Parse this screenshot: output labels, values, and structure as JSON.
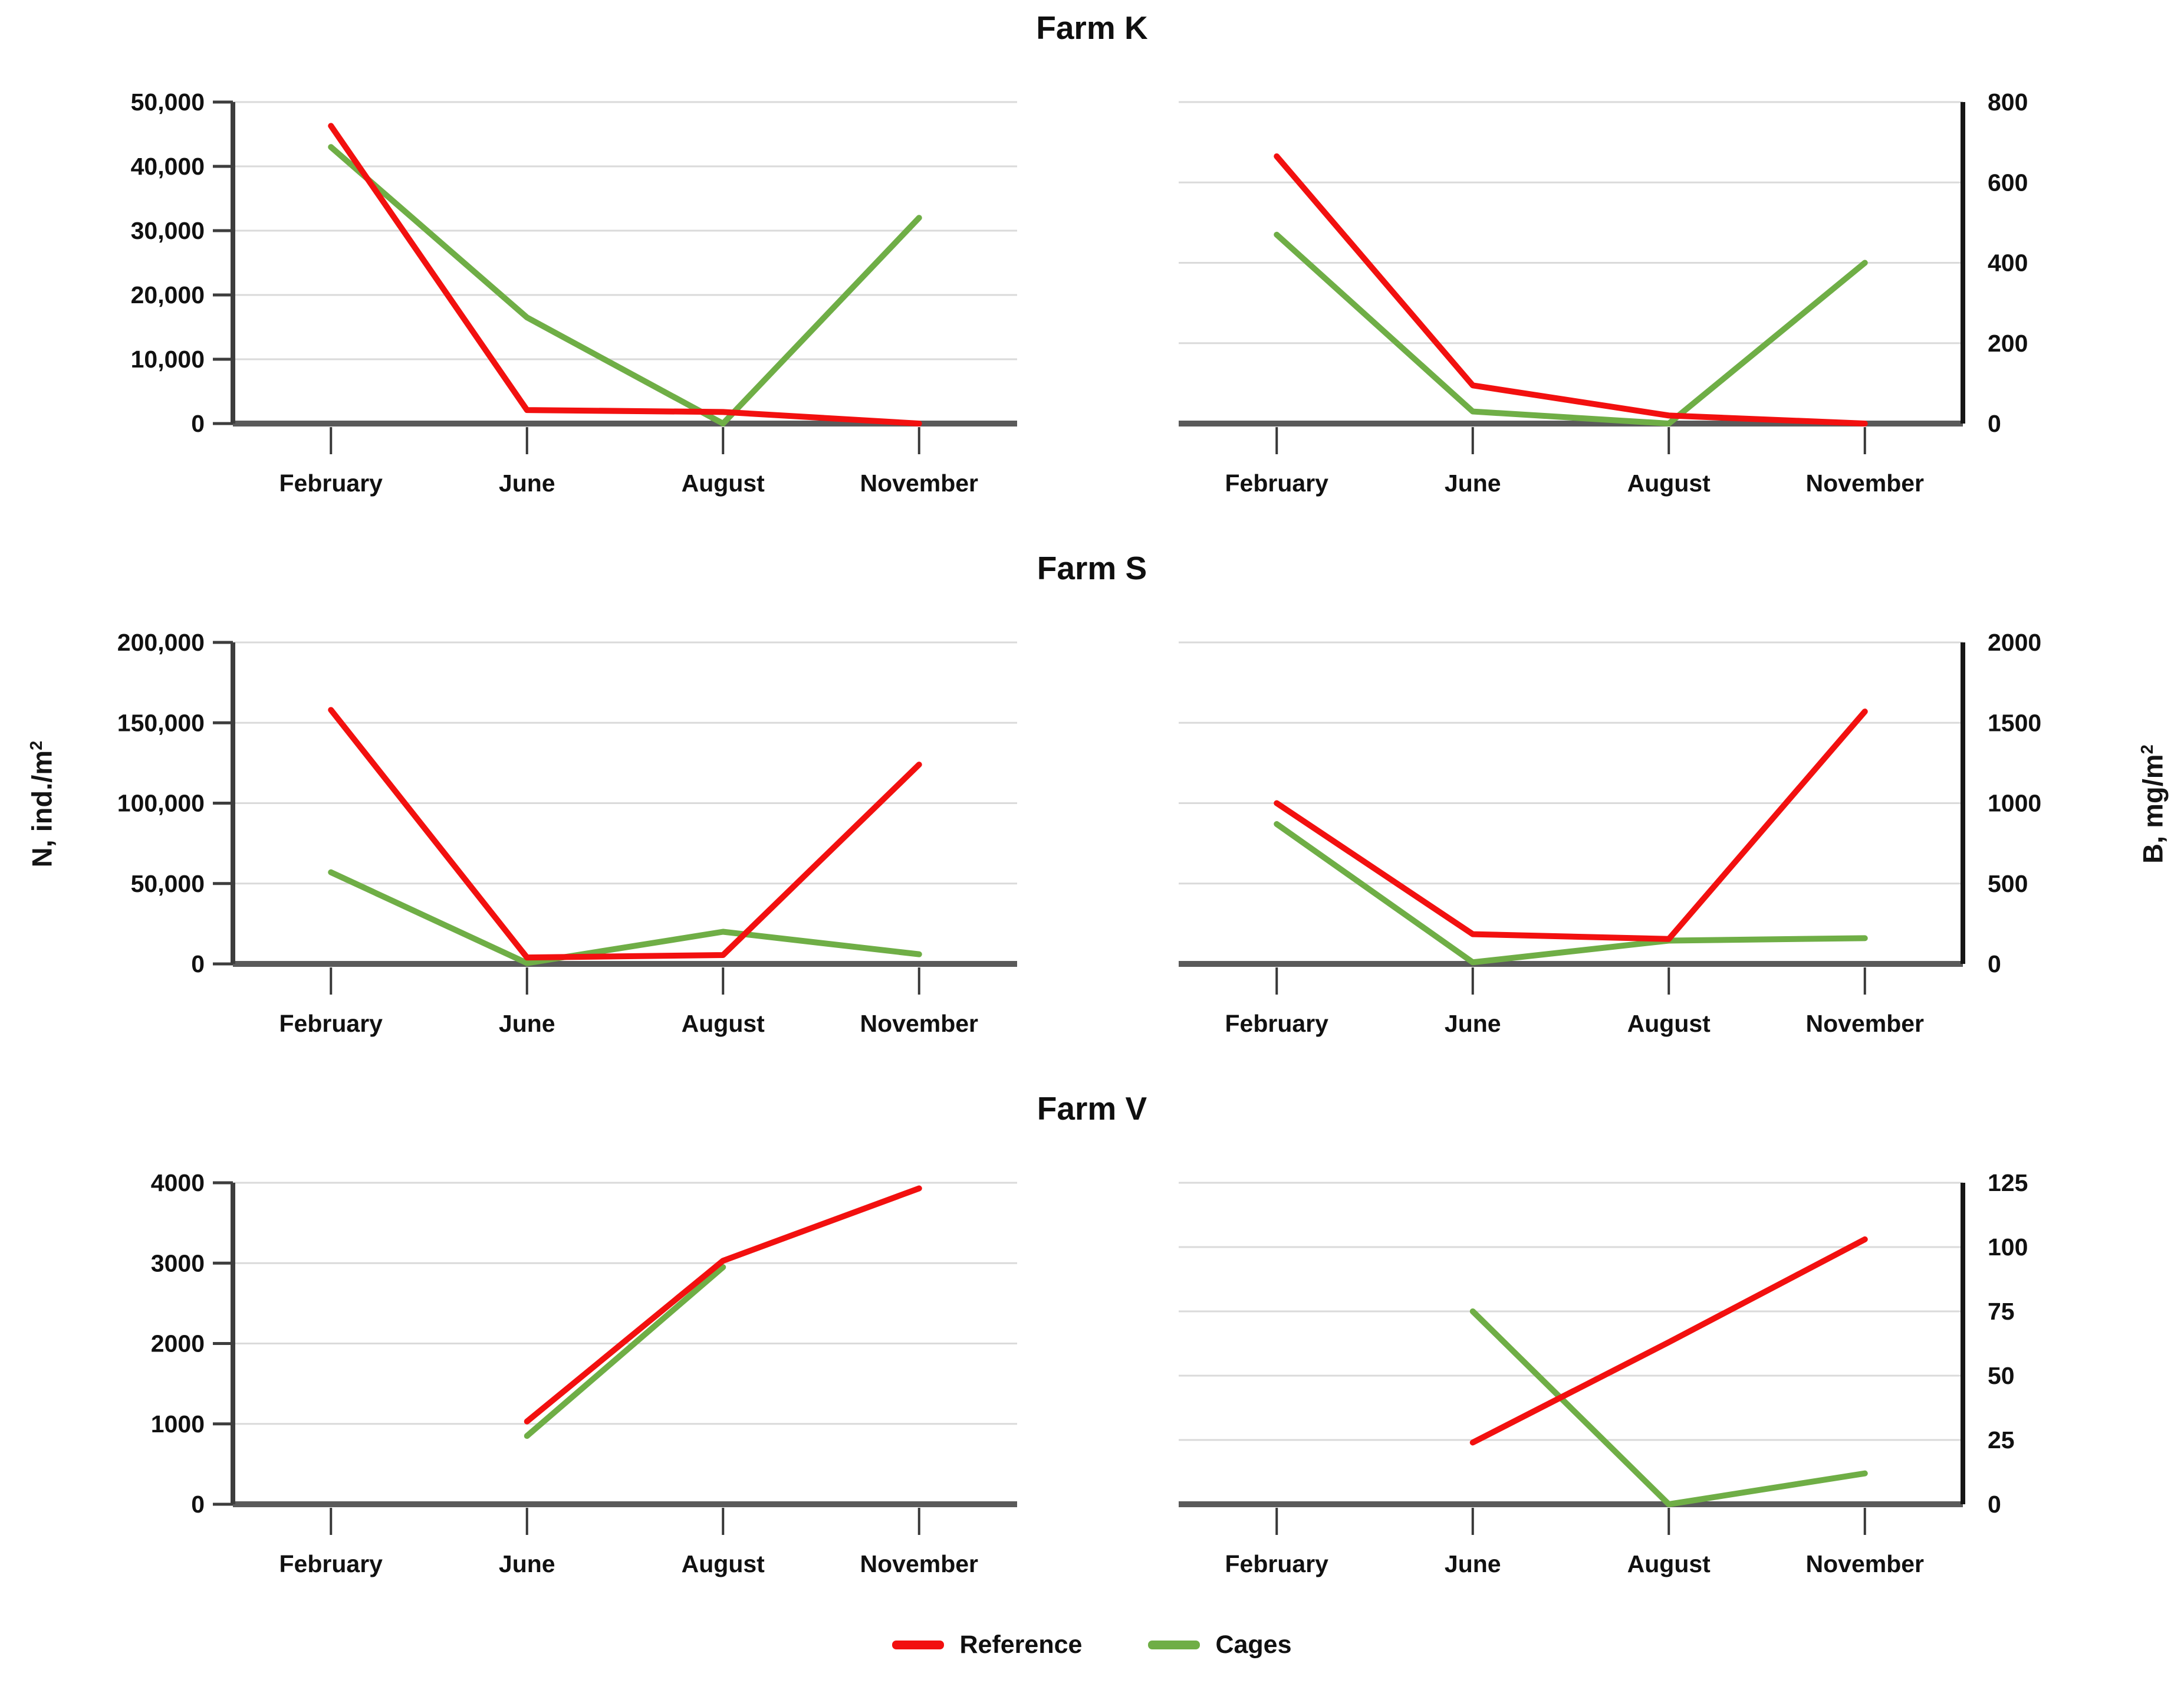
{
  "figure": {
    "background": "#ffffff"
  },
  "rows": [
    {
      "title": "Farm K"
    },
    {
      "title": "Farm S"
    },
    {
      "title": "Farm V"
    }
  ],
  "axis_labels": {
    "left_prefix": "N, ind./m",
    "left_sup": "2",
    "right_prefix": "B, mg/m",
    "right_sup": "2"
  },
  "legend": {
    "items": [
      {
        "label": "Reference",
        "color": "#f2100f"
      },
      {
        "label": "Cages",
        "color": "#6fae46"
      }
    ]
  },
  "styles": {
    "grid_color": "#dadada",
    "x_axis_color": "#5a5a5a",
    "y_axis_color_left": "#3d3d3d",
    "y_axis_color_right": "#161616",
    "tick_color": "#383838",
    "text_color": "#111111",
    "line_width": 10
  },
  "chart_data": [
    {
      "type": "line",
      "farm": "Farm K",
      "quantity": "N, ind./m2",
      "axis_side": "left",
      "categories": [
        "February",
        "June",
        "August",
        "November"
      ],
      "ylim": [
        0,
        50000
      ],
      "grid": true,
      "yticks": [
        {
          "value": 0,
          "label": "0"
        },
        {
          "value": 10000,
          "label": "10,000"
        },
        {
          "value": 20000,
          "label": "20,000"
        },
        {
          "value": 30000,
          "label": "30,000"
        },
        {
          "value": 40000,
          "label": "40,000"
        },
        {
          "value": 50000,
          "label": "50,000"
        }
      ],
      "series": [
        {
          "name": "Reference",
          "color": "#f2100f",
          "values": [
            46300,
            2100,
            1800,
            0
          ]
        },
        {
          "name": "Cages",
          "color": "#6fae46",
          "values": [
            43000,
            16500,
            0,
            32000
          ]
        }
      ]
    },
    {
      "type": "line",
      "farm": "Farm K",
      "quantity": "B, mg/m2",
      "axis_side": "right",
      "categories": [
        "February",
        "June",
        "August",
        "November"
      ],
      "ylim": [
        0,
        800
      ],
      "grid": true,
      "yticks": [
        {
          "value": 0,
          "label": "0"
        },
        {
          "value": 200,
          "label": "200"
        },
        {
          "value": 400,
          "label": "400"
        },
        {
          "value": 600,
          "label": "600"
        },
        {
          "value": 800,
          "label": "800"
        }
      ],
      "series": [
        {
          "name": "Reference",
          "color": "#f2100f",
          "values": [
            665,
            95,
            20,
            0
          ]
        },
        {
          "name": "Cages",
          "color": "#6fae46",
          "values": [
            470,
            30,
            0,
            400
          ]
        }
      ]
    },
    {
      "type": "line",
      "farm": "Farm S",
      "quantity": "N, ind./m2",
      "axis_side": "left",
      "categories": [
        "February",
        "June",
        "August",
        "November"
      ],
      "ylim": [
        0,
        200000
      ],
      "grid": true,
      "yticks": [
        {
          "value": 0,
          "label": "0"
        },
        {
          "value": 50000,
          "label": "50,000"
        },
        {
          "value": 100000,
          "label": "100,000"
        },
        {
          "value": 150000,
          "label": "150,000"
        },
        {
          "value": 200000,
          "label": "200,000"
        }
      ],
      "series": [
        {
          "name": "Reference",
          "color": "#f2100f",
          "values": [
            158000,
            4000,
            5500,
            124000
          ]
        },
        {
          "name": "Cages",
          "color": "#6fae46",
          "values": [
            57000,
            500,
            20000,
            6000
          ]
        }
      ]
    },
    {
      "type": "line",
      "farm": "Farm S",
      "quantity": "B, mg/m2",
      "axis_side": "right",
      "categories": [
        "February",
        "June",
        "August",
        "November"
      ],
      "ylim": [
        0,
        2000
      ],
      "grid": true,
      "yticks": [
        {
          "value": 0,
          "label": "0"
        },
        {
          "value": 500,
          "label": "500"
        },
        {
          "value": 1000,
          "label": "1000"
        },
        {
          "value": 1500,
          "label": "1500"
        },
        {
          "value": 2000,
          "label": "2000"
        }
      ],
      "series": [
        {
          "name": "Reference",
          "color": "#f2100f",
          "values": [
            1000,
            185,
            155,
            1570
          ]
        },
        {
          "name": "Cages",
          "color": "#6fae46",
          "values": [
            870,
            10,
            145,
            160
          ]
        }
      ]
    },
    {
      "type": "line",
      "farm": "Farm V",
      "quantity": "N, ind./m2",
      "axis_side": "left",
      "categories": [
        "February",
        "June",
        "August",
        "November"
      ],
      "ylim": [
        0,
        4000
      ],
      "grid": true,
      "yticks": [
        {
          "value": 0,
          "label": "0"
        },
        {
          "value": 1000,
          "label": "1000"
        },
        {
          "value": 2000,
          "label": "2000"
        },
        {
          "value": 3000,
          "label": "3000"
        },
        {
          "value": 4000,
          "label": "4000"
        }
      ],
      "series": [
        {
          "name": "Reference",
          "color": "#f2100f",
          "values": [
            null,
            1030,
            3030,
            3930
          ]
        },
        {
          "name": "Cages",
          "color": "#6fae46",
          "values": [
            null,
            850,
            2950,
            null
          ]
        }
      ]
    },
    {
      "type": "line",
      "farm": "Farm V",
      "quantity": "B, mg/m2",
      "axis_side": "right",
      "categories": [
        "February",
        "June",
        "August",
        "November"
      ],
      "ylim": [
        0,
        125
      ],
      "grid": true,
      "yticks": [
        {
          "value": 0,
          "label": "0"
        },
        {
          "value": 25,
          "label": "25"
        },
        {
          "value": 50,
          "label": "50"
        },
        {
          "value": 75,
          "label": "75"
        },
        {
          "value": 100,
          "label": "100"
        },
        {
          "value": 125,
          "label": "125"
        }
      ],
      "series": [
        {
          "name": "Reference",
          "color": "#f2100f",
          "values": [
            null,
            24,
            63,
            103
          ]
        },
        {
          "name": "Cages",
          "color": "#6fae46",
          "values": [
            null,
            75,
            0,
            12
          ]
        }
      ]
    }
  ]
}
